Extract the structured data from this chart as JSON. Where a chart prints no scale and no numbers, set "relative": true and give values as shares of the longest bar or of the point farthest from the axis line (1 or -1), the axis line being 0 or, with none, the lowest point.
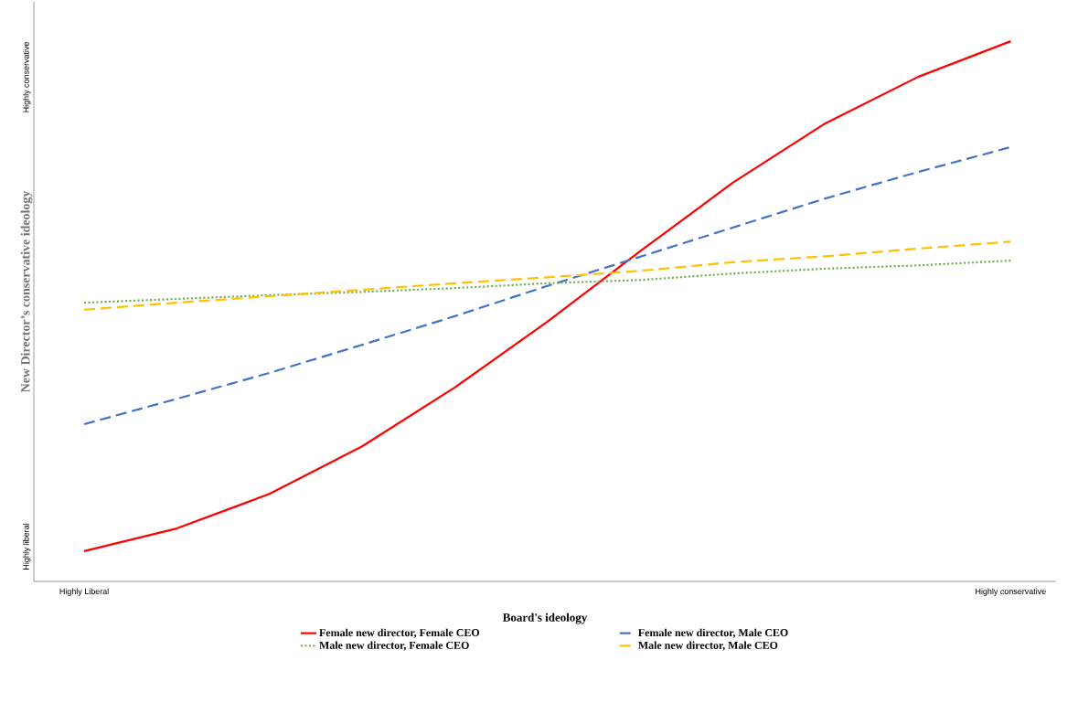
{
  "chart_data": {
    "type": "line",
    "relative": true,
    "xlabel": "Board's ideology",
    "ylabel": "New Director’s conservative ideology",
    "categories": [
      "Highly Liberal",
      null,
      null,
      null,
      null,
      null,
      null,
      null,
      null,
      null,
      "Highly conservative"
    ],
    "annotations": [
      "Highly liberal",
      "Highly conservative"
    ],
    "legend": "bottom",
    "marker": "none",
    "series": [
      {
        "name": "Female new director, Female CEO",
        "color": "#ff0000",
        "line_style": "solid",
        "values": [
          0.056,
          0.098,
          0.162,
          0.25,
          0.359,
          0.481,
          0.611,
          0.738,
          0.848,
          0.934,
          1
        ]
      },
      {
        "name": "Female new director, Male CEO",
        "color": "#4472c4",
        "line_style": "dashed",
        "values": [
          0.291,
          0.338,
          0.386,
          0.438,
          0.491,
          0.547,
          0.601,
          0.655,
          0.709,
          0.758,
          0.804
        ]
      },
      {
        "name": "Male new director, Female CEO",
        "color": "#70ad47",
        "line_style": "dotted",
        "values": [
          0.516,
          0.523,
          0.53,
          0.536,
          0.543,
          0.552,
          0.558,
          0.57,
          0.579,
          0.585,
          0.594
        ]
      },
      {
        "name": "Male new director, Male CEO",
        "color": "#ffc000",
        "line_style": "dashed",
        "values": [
          0.503,
          0.516,
          0.528,
          0.54,
          0.552,
          0.563,
          0.575,
          0.591,
          0.602,
          0.616,
          0.629
        ]
      }
    ]
  }
}
